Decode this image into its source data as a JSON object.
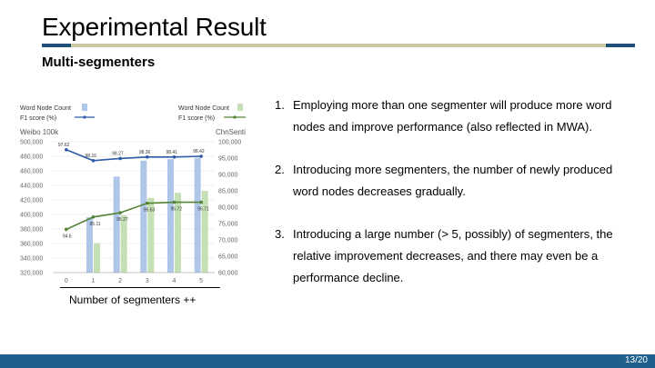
{
  "title": "Experimental Result",
  "subtitle": "Multi-segmenters",
  "caption": "Number of segmenters ++",
  "points": [
    {
      "num": "1.",
      "text": "Employing more than one segmenter will produce more word nodes and improve performance (also reflected in MWA)."
    },
    {
      "num": "2.",
      "text": "Introducing more segmenters, the number of newly produced word nodes decreases gradually."
    },
    {
      "num": "3.",
      "text": "Introducing a large number (> 5, possibly) of segmenters, the relative improvement decreases, and there may even be a performance decline."
    }
  ],
  "page_number": "13/20",
  "colors": {
    "accent": "#1f4e79",
    "footer": "#1f5f8b"
  },
  "chart_data": {
    "type": "bar",
    "categories": [
      "0",
      "1",
      "2",
      "3",
      "4",
      "5"
    ],
    "left_axis_label": "Weibo 100k",
    "right_axis_label": "ChnSenti",
    "left_ticks": [
      "500,000",
      "480,000",
      "460,000",
      "440,000",
      "420,000",
      "400,000",
      "380,000",
      "360,000",
      "340,000",
      "320,000"
    ],
    "right_ticks": [
      "100,000",
      "95,000",
      "90,000",
      "85,000",
      "80,000",
      "75,000",
      "70,000",
      "65,000",
      "60,000"
    ],
    "ylim_left": [
      320000,
      500000
    ],
    "ylim_right": [
      60000,
      100000
    ],
    "legends": {
      "left": {
        "bar": "Word Node Count",
        "line": "F1 score (%)",
        "bar_color": "#aec6e8",
        "line_color": "#2e5aa8"
      },
      "right": {
        "bar": "Word Node Count",
        "line": "F1 score (%)",
        "bar_color": "#c5e0b4",
        "line_color": "#548235"
      }
    },
    "weibo_bars": [
      null,
      396000,
      452000,
      474000,
      476000,
      478000
    ],
    "chnsenti_bars": [
      null,
      69000,
      77500,
      82800,
      84400,
      85000
    ],
    "weibo_f1": [
      {
        "x": 0,
        "value": 489000,
        "label": "97.62"
      },
      {
        "x": 1,
        "value": 474000,
        "label": "98.15"
      },
      {
        "x": 2,
        "value": 477000,
        "label": "98.27"
      },
      {
        "x": 3,
        "value": 479000,
        "label": "98.36"
      },
      {
        "x": 4,
        "value": 479000,
        "label": "98.41"
      },
      {
        "x": 5,
        "value": 480000,
        "label": "98.42"
      }
    ],
    "chnsenti_f1": [
      {
        "x": 0,
        "value": 73200,
        "label": "94.6"
      },
      {
        "x": 1,
        "value": 77000,
        "label": "95.11"
      },
      {
        "x": 2,
        "value": 78300,
        "label": "95.27"
      },
      {
        "x": 3,
        "value": 81200,
        "label": "95.63"
      },
      {
        "x": 4,
        "value": 81500,
        "label": "95.72"
      },
      {
        "x": 5,
        "value": 81500,
        "label": "95.71"
      }
    ]
  }
}
